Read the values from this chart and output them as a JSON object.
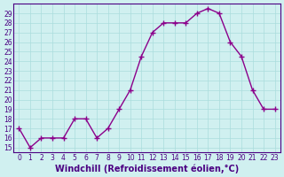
{
  "x": [
    0,
    1,
    2,
    3,
    4,
    5,
    6,
    7,
    8,
    9,
    10,
    11,
    12,
    13,
    14,
    15,
    16,
    17,
    18,
    19,
    20,
    21,
    22,
    23
  ],
  "y": [
    17,
    15,
    16,
    16,
    16,
    18,
    18,
    16,
    17,
    19,
    21,
    24.5,
    27,
    28,
    28,
    28,
    29,
    29.5,
    29,
    26,
    24.5,
    21,
    19,
    19
  ],
  "line_color": "#8B008B",
  "marker": "+",
  "marker_color": "#8B008B",
  "bg_color": "#d0f0f0",
  "grid_color": "#aadddd",
  "xlabel": "Windchill (Refroidissement éolien,°C)",
  "ylim": [
    14.5,
    30
  ],
  "xlim": [
    -0.5,
    23.5
  ],
  "yticks": [
    15,
    16,
    17,
    18,
    19,
    20,
    21,
    22,
    23,
    24,
    25,
    26,
    27,
    28,
    29
  ],
  "xticks": [
    0,
    1,
    2,
    3,
    4,
    5,
    6,
    7,
    8,
    9,
    10,
    11,
    12,
    13,
    14,
    15,
    16,
    17,
    18,
    19,
    20,
    21,
    22,
    23
  ],
  "tick_fontsize": 5.5,
  "xlabel_fontsize": 7,
  "xlabel_color": "#4B0082",
  "tick_color": "#4B0082",
  "spine_color": "#4B0082",
  "line_width": 1.0,
  "marker_size": 4
}
